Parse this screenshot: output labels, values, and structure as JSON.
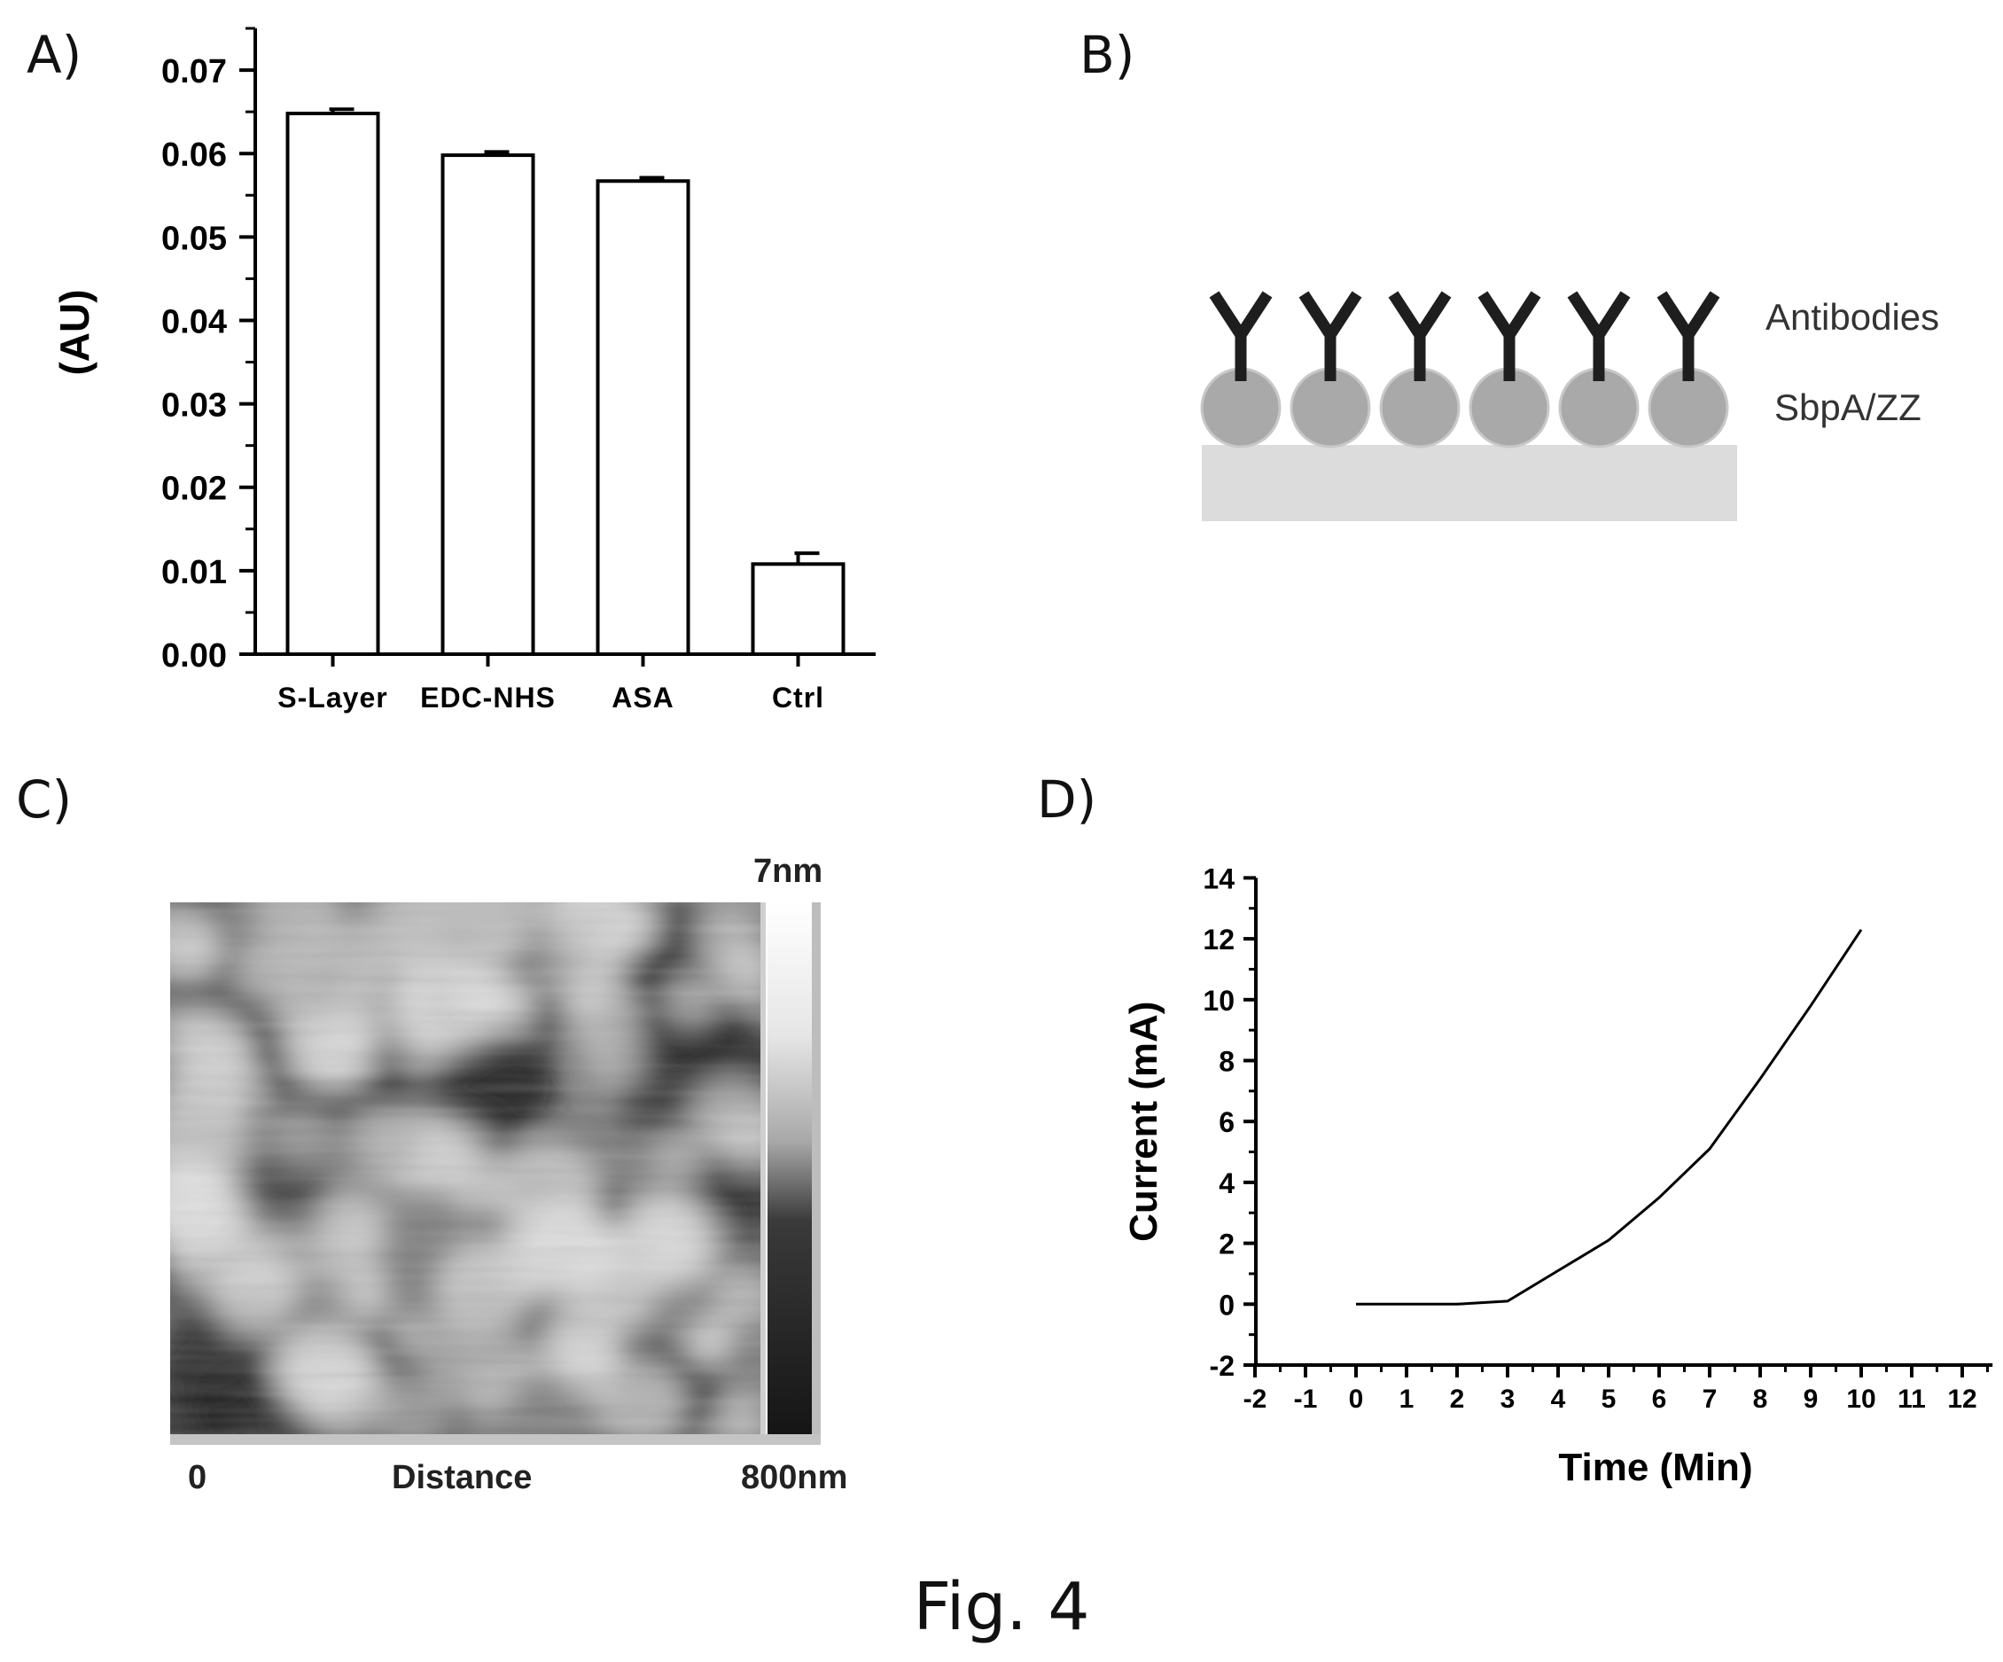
{
  "figure": {
    "caption": "Fig. 4"
  },
  "panels": {
    "a": {
      "label": "A)"
    },
    "b": {
      "label": "B)",
      "layer_labels": [
        "Antibodies",
        "SbpA/ZZ"
      ],
      "antibody_count": 6,
      "particle_count": 6
    },
    "c": {
      "label": "C)",
      "scale_max": "7nm",
      "x_start": "0",
      "x_title": "Distance",
      "x_end": "800nm"
    },
    "d": {
      "label": "D)"
    }
  },
  "chart_data": [
    {
      "panel": "A)",
      "type": "bar",
      "categories": [
        "S-Layer",
        "EDC-NHS",
        "ASA",
        "Ctrl"
      ],
      "values": [
        0.0648,
        0.0598,
        0.0567,
        0.0108
      ],
      "error": [
        0.0005,
        0.0004,
        0.0004,
        0.0013
      ],
      "title": "",
      "xlabel": "",
      "ylabel": "(AU)",
      "ylim": [
        0,
        0.075
      ],
      "yticks": [
        "0.00",
        "0.01",
        "0.02",
        "0.03",
        "0.04",
        "0.05",
        "0.06",
        "0.07"
      ],
      "grid": false,
      "bar_fill": "#ffffff",
      "bar_stroke": "#000000"
    },
    {
      "panel": "D)",
      "type": "line",
      "x": [
        0,
        1,
        2,
        3,
        4,
        5,
        6,
        7,
        8,
        9,
        10
      ],
      "y": [
        0,
        0,
        0,
        0.1,
        1.1,
        2.1,
        3.5,
        5.1,
        7.4,
        9.8,
        12.3
      ],
      "title": "",
      "xlabel": "Time (Min)",
      "ylabel": "Current (mA)",
      "xlim": [
        -2,
        12.5
      ],
      "ylim": [
        -2,
        14
      ],
      "xticks": [
        "-2",
        "-1",
        "0",
        "1",
        "2",
        "3",
        "4",
        "5",
        "6",
        "7",
        "8",
        "9",
        "10",
        "11",
        "12"
      ],
      "yticks": [
        "-2",
        "0",
        "2",
        "4",
        "6",
        "8",
        "10",
        "12",
        "14"
      ],
      "grid": false,
      "line_color": "#000000"
    }
  ]
}
